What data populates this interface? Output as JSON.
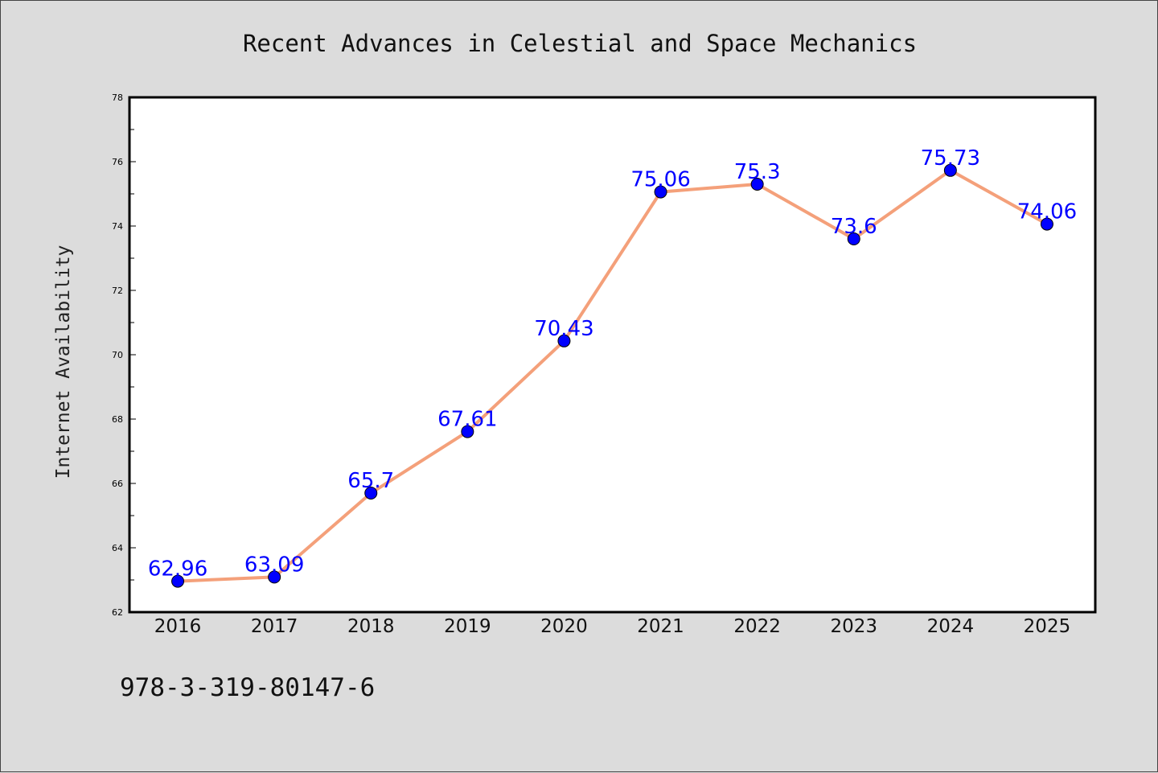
{
  "chart_data": {
    "type": "line",
    "title": "Recent Advances in Celestial and Space Mechanics",
    "xlabel": "",
    "ylabel": "Internet Availability",
    "categories": [
      "2016",
      "2017",
      "2018",
      "2019",
      "2020",
      "2021",
      "2022",
      "2023",
      "2024",
      "2025"
    ],
    "series": [
      {
        "values": [
          62.96,
          63.09,
          65.7,
          67.61,
          70.43,
          75.06,
          75.3,
          73.6,
          75.73,
          74.06
        ],
        "data_labels": [
          "62.96",
          "63.09",
          "65.7",
          "67.61",
          "70.43",
          "75.06",
          "75.3",
          "73.6",
          "75.73",
          "74.06"
        ],
        "line_color": "#f4a07a",
        "marker_color": "#0000ff",
        "label_color": "#0000ff"
      }
    ],
    "ylim": [
      62,
      78
    ],
    "yticks": [
      "62",
      "64",
      "66",
      "68",
      "70",
      "72",
      "74",
      "76",
      "78"
    ],
    "grid": false,
    "legend": "none"
  },
  "footer_text": "978-3-319-80147-6",
  "colors": {
    "background": "#dcdcdc",
    "plot_area": "#ffffff",
    "axis": "#000000"
  }
}
